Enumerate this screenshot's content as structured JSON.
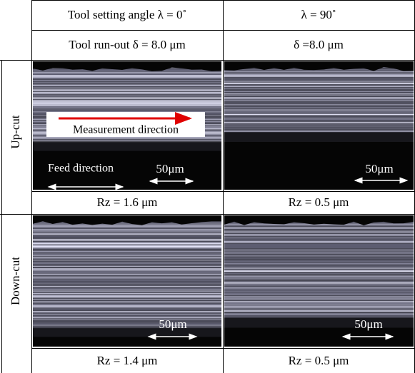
{
  "header": {
    "rows": [
      [
        "Tool setting angle λ = 0˚",
        "λ = 90˚"
      ],
      [
        "Tool run-out δ = 8.0 μm",
        "δ =8.0 μm"
      ]
    ]
  },
  "rows": [
    {
      "label": "Up-cut",
      "images": [
        {
          "measurement_label": "Measurement direction",
          "feed_label": "Feed direction",
          "scale_label": "50μm"
        },
        {
          "scale_label": "50μm"
        }
      ],
      "rz": [
        "Rz = 1.6 μm",
        "Rz = 0.5 μm"
      ]
    },
    {
      "label": "Down-cut",
      "images": [
        {
          "scale_label": "50μm"
        },
        {
          "scale_label": "50μm"
        }
      ],
      "rz": [
        "Rz = 1.4 μm",
        "Rz = 0.5 μm"
      ]
    }
  ]
}
